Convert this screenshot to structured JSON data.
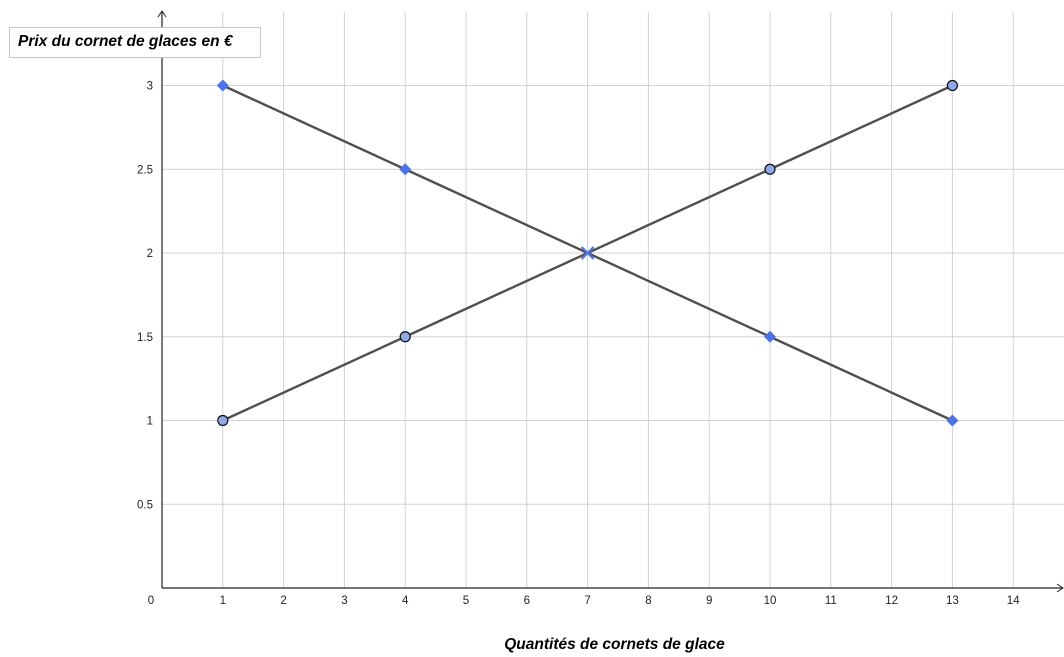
{
  "chart_data": {
    "type": "line",
    "ylabel": "Prix du cornet de glaces en €",
    "xlabel": "Quantités de cornets de glace",
    "xlim": [
      0,
      14.8
    ],
    "ylim": [
      0,
      3.45
    ],
    "x_ticks": [
      "1",
      "2",
      "3",
      "4",
      "5",
      "6",
      "7",
      "8",
      "9",
      "10",
      "11",
      "12",
      "13",
      "14"
    ],
    "y_ticks": [
      "0.5",
      "1",
      "1.5",
      "2",
      "2.5",
      "3"
    ],
    "origin_label": "0",
    "grid": true,
    "series": [
      {
        "marker": "diamond",
        "points": [
          [
            1,
            3
          ],
          [
            4,
            2.5
          ],
          [
            10,
            1.5
          ],
          [
            13,
            1
          ]
        ],
        "marker_color": "#4a72f0",
        "line_color": "#4f4f4f"
      },
      {
        "marker": "circle",
        "points": [
          [
            1,
            1
          ],
          [
            4,
            1.5
          ],
          [
            10,
            2.5
          ],
          [
            13,
            3
          ]
        ],
        "marker_color": "#8ea8ee",
        "line_color": "#4f4f4f"
      }
    ],
    "intersection": {
      "x": 7,
      "y": 2,
      "marker": "cross",
      "color": "#4a72f0"
    }
  }
}
